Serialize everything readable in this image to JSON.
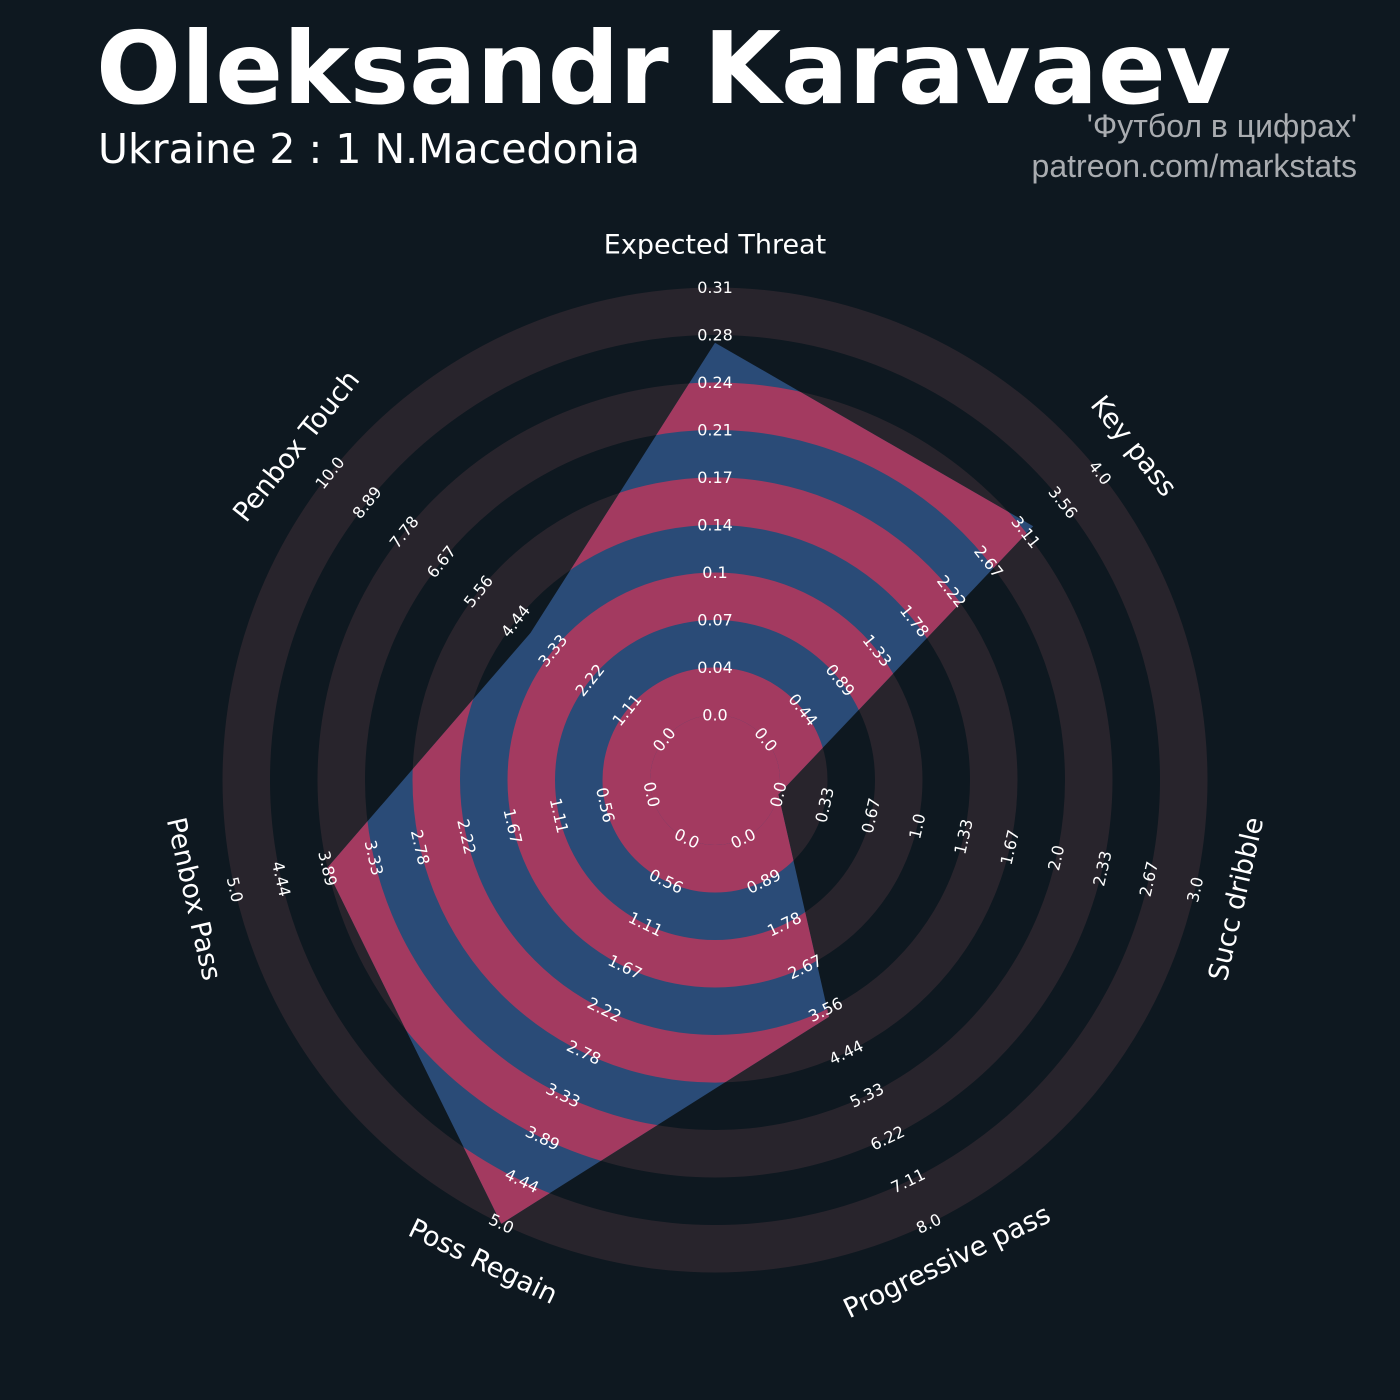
{
  "header": {
    "player": "Oleksandr Karavaev",
    "match": "Ukraine 2 : 1 N.Macedonia",
    "credit_line1": "'Футбол в цифрах'",
    "credit_line2": "patreon.com/markstats"
  },
  "colors": {
    "background": "#0e1820",
    "ring_dark": "#28242c",
    "ring_light_area": "#2a4b77",
    "ring_light_area_alt": "#a33a60",
    "text": "#ffffff",
    "credit": "#a9acb0"
  },
  "chart_data": {
    "type": "radar",
    "axes": [
      "Expected Threat",
      "Key pass",
      "Succ dribble",
      "Progressive pass",
      "Poss Regain",
      "Penbox Pass",
      "Penbox Touch"
    ],
    "ranges": [
      [
        0.0,
        0.31
      ],
      [
        0.0,
        4.0
      ],
      [
        0.0,
        3.0
      ],
      [
        0.0,
        8.0
      ],
      [
        0.0,
        5.0
      ],
      [
        0.0,
        5.0
      ],
      [
        0.0,
        10.0
      ]
    ],
    "values": [
      0.27,
      3.2,
      0.0,
      3.7,
      5.0,
      3.9,
      4.0
    ],
    "tick_labels": [
      [
        "0.0",
        "0.04",
        "0.07",
        "0.1",
        "0.14",
        "0.17",
        "0.21",
        "0.24",
        "0.28",
        "0.31"
      ],
      [
        "0.0",
        "0.44",
        "0.89",
        "1.33",
        "1.78",
        "2.22",
        "2.67",
        "3.11",
        "3.56",
        "4.0"
      ],
      [
        "0.0",
        "0.33",
        "0.67",
        "1.0",
        "1.33",
        "1.67",
        "2.0",
        "2.33",
        "2.67",
        "3.0"
      ],
      [
        "0.0",
        "0.89",
        "1.78",
        "2.67",
        "3.56",
        "4.44",
        "5.33",
        "6.22",
        "7.11",
        "8.0"
      ],
      [
        "0.0",
        "0.56",
        "1.11",
        "1.67",
        "2.22",
        "2.78",
        "3.33",
        "3.89",
        "4.44",
        "5.0"
      ],
      [
        "0.0",
        "0.56",
        "1.11",
        "1.67",
        "2.22",
        "2.78",
        "3.33",
        "3.89",
        "4.44",
        "5.0"
      ],
      [
        "0.0",
        "1.11",
        "2.22",
        "3.33",
        "4.44",
        "5.56",
        "6.67",
        "7.78",
        "8.89",
        "10.0"
      ]
    ],
    "grid": true
  }
}
